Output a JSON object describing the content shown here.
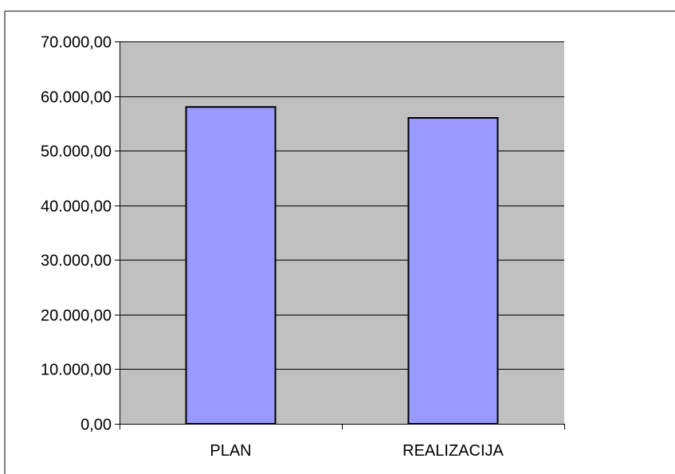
{
  "chart_data": {
    "type": "bar",
    "categories": [
      "PLAN",
      "REALIZACIJA"
    ],
    "values": [
      58000,
      56000
    ],
    "ylim": [
      0,
      70000
    ],
    "yticks": [
      0,
      10000,
      20000,
      30000,
      40000,
      50000,
      60000,
      70000
    ],
    "ytick_labels": [
      "0,00",
      "10.000,00",
      "20.000,00",
      "30.000,00",
      "40.000,00",
      "50.000,00",
      "60.000,00",
      "70.000,00"
    ],
    "grid": true,
    "title": "",
    "xlabel": "",
    "ylabel": "",
    "colors": {
      "bar": "#9999ff",
      "plot_background": "#c0c0c0",
      "gridline": "#000000",
      "outline": "#000000"
    }
  }
}
